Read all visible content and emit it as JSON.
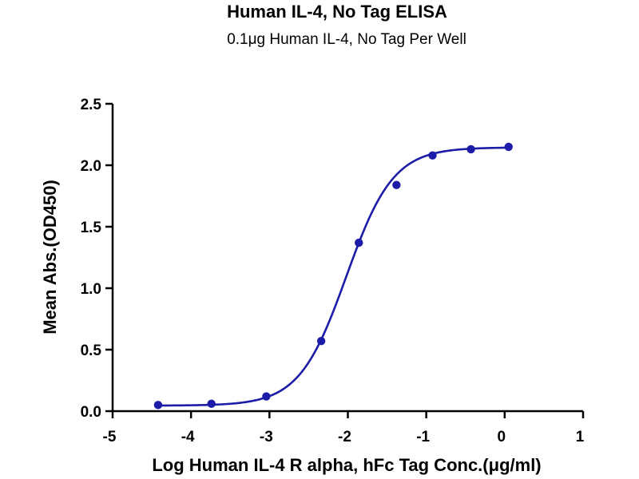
{
  "chart_data": {
    "type": "scatter",
    "title": "Human IL-4, No Tag ELISA",
    "subtitle": "0.1μg Human IL-4, No Tag Per Well",
    "xlabel": "Log Human IL-4 R alpha, hFc Tag Conc.(μg/ml)",
    "ylabel": "Mean Abs.(OD450)",
    "xlim": [
      -5,
      1
    ],
    "ylim": [
      0,
      2.5
    ],
    "x_ticks": [
      -5,
      -4,
      -3,
      -2,
      -1,
      0,
      1
    ],
    "y_ticks": [
      0.0,
      0.5,
      1.0,
      1.5,
      2.0,
      2.5
    ],
    "x_tick_labels": [
      "-5",
      "-4",
      "-3",
      "-2",
      "-1",
      "0",
      "1"
    ],
    "y_tick_labels": [
      "0.0",
      "0.5",
      "1.0",
      "1.5",
      "2.0",
      "2.5"
    ],
    "grid": false,
    "series": [
      {
        "color": "#1c1ca8",
        "x": [
          -4.42,
          -3.74,
          -3.04,
          -2.34,
          -1.86,
          -1.38,
          -0.92,
          -0.43,
          0.05
        ],
        "y": [
          0.05,
          0.06,
          0.12,
          0.57,
          1.37,
          1.84,
          2.08,
          2.13,
          2.15
        ],
        "fit": {
          "model": "4PL",
          "bottom": 0.045,
          "top": 2.145,
          "log_ec50": -2.02,
          "hill_slope": 1.45
        }
      }
    ]
  }
}
